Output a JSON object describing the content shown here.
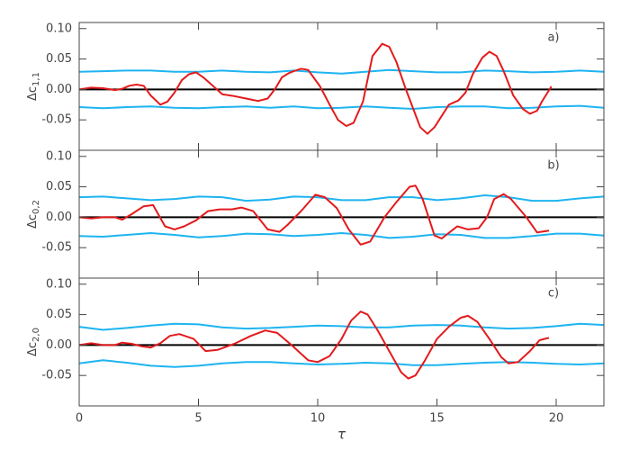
{
  "chart_data": [
    {
      "type": "line",
      "ylabel": "Δc",
      "ylabel_sub": "1,1",
      "annotation": "a)",
      "xlim": [
        0,
        22
      ],
      "xticks": [
        0,
        5,
        10,
        15,
        20
      ],
      "ylim": [
        -0.1,
        0.11
      ],
      "yticks": [
        {
          "value": -0.05,
          "label": "-0.05"
        },
        {
          "value": 0,
          "label": "0.00"
        },
        {
          "value": 0.05,
          "label": "0.05"
        },
        {
          "value": 0.1,
          "label": "0.10"
        }
      ],
      "zero_line": true,
      "series": [
        {
          "color": "#1eb4f0",
          "x": [
            0,
            1,
            2,
            3,
            4,
            5,
            6,
            7,
            8,
            9,
            10,
            11,
            12,
            13,
            14,
            15,
            16,
            17,
            18,
            19,
            20,
            21,
            22
          ],
          "values": [
            0.029,
            0.03,
            0.031,
            0.031,
            0.029,
            0.029,
            0.031,
            0.029,
            0.028,
            0.031,
            0.028,
            0.026,
            0.029,
            0.032,
            0.03,
            0.028,
            0.028,
            0.031,
            0.03,
            0.028,
            0.029,
            0.031,
            0.029
          ]
        },
        {
          "color": "#1eb4f0",
          "x": [
            0,
            1,
            2,
            3,
            4,
            5,
            6,
            7,
            8,
            9,
            10,
            11,
            12,
            13,
            14,
            15,
            16,
            17,
            18,
            19,
            20,
            21,
            22
          ],
          "values": [
            -0.029,
            -0.031,
            -0.029,
            -0.028,
            -0.03,
            -0.031,
            -0.029,
            -0.028,
            -0.03,
            -0.028,
            -0.031,
            -0.03,
            -0.028,
            -0.03,
            -0.032,
            -0.029,
            -0.028,
            -0.028,
            -0.031,
            -0.03,
            -0.028,
            -0.027,
            -0.03
          ]
        },
        {
          "color": "#e31a1c",
          "x": [
            0,
            0.5,
            1,
            1.5,
            1.8,
            2.1,
            2.4,
            2.7,
            3.0,
            3.4,
            3.7,
            4.0,
            4.3,
            4.6,
            4.9,
            5.2,
            5.6,
            6.0,
            6.5,
            7.0,
            7.5,
            7.9,
            8.2,
            8.5,
            8.8,
            9.0,
            9.3,
            9.6,
            10.1,
            10.5,
            10.85,
            11.2,
            11.5,
            11.9,
            12.3,
            12.7,
            13.0,
            13.3,
            13.7,
            14.3,
            14.6,
            14.9,
            15.5,
            15.9,
            16.2,
            16.5,
            16.9,
            17.2,
            17.5,
            17.8,
            18.2,
            18.6,
            18.9,
            19.2,
            19.4,
            19.8
          ],
          "values": [
            0,
            0.003,
            0.002,
            -0.001,
            0.001,
            0.006,
            0.008,
            0.006,
            -0.01,
            -0.025,
            -0.02,
            -0.005,
            0.015,
            0.025,
            0.028,
            0.02,
            0.006,
            -0.008,
            -0.011,
            -0.015,
            -0.019,
            -0.015,
            0,
            0.02,
            0.027,
            0.03,
            0.034,
            0.032,
            0.005,
            -0.025,
            -0.05,
            -0.06,
            -0.055,
            -0.02,
            0.055,
            0.075,
            0.07,
            0.045,
            0,
            -0.062,
            -0.073,
            -0.062,
            -0.025,
            -0.018,
            -0.005,
            0.025,
            0.052,
            0.062,
            0.055,
            0.03,
            -0.01,
            -0.032,
            -0.04,
            -0.035,
            -0.02,
            0.005
          ]
        }
      ]
    },
    {
      "type": "line",
      "ylabel": "Δc",
      "ylabel_sub": "0,2",
      "annotation": "b)",
      "xlim": [
        0,
        22
      ],
      "xticks": [
        0,
        5,
        10,
        15,
        20
      ],
      "ylim": [
        -0.1,
        0.11
      ],
      "yticks": [
        {
          "value": -0.05,
          "label": "-0.05"
        },
        {
          "value": 0,
          "label": "0.00"
        },
        {
          "value": 0.05,
          "label": "0.05"
        },
        {
          "value": 0.1,
          "label": "0.10"
        }
      ],
      "zero_line": true,
      "series": [
        {
          "color": "#1eb4f0",
          "x": [
            0,
            1,
            2,
            3,
            4,
            5,
            6,
            7,
            8,
            9,
            10,
            11,
            12,
            13,
            14,
            15,
            16,
            17,
            18,
            19,
            20,
            21,
            22
          ],
          "values": [
            0.033,
            0.034,
            0.031,
            0.028,
            0.03,
            0.034,
            0.033,
            0.027,
            0.029,
            0.034,
            0.033,
            0.028,
            0.028,
            0.033,
            0.033,
            0.028,
            0.031,
            0.036,
            0.033,
            0.027,
            0.027,
            0.031,
            0.034
          ]
        },
        {
          "color": "#1eb4f0",
          "x": [
            0,
            1,
            2,
            3,
            4,
            5,
            6,
            7,
            8,
            9,
            10,
            11,
            12,
            13,
            14,
            15,
            16,
            17,
            18,
            19,
            20,
            21,
            22
          ],
          "values": [
            -0.031,
            -0.032,
            -0.029,
            -0.026,
            -0.029,
            -0.033,
            -0.031,
            -0.027,
            -0.028,
            -0.031,
            -0.029,
            -0.026,
            -0.029,
            -0.034,
            -0.032,
            -0.028,
            -0.029,
            -0.034,
            -0.034,
            -0.031,
            -0.027,
            -0.027,
            -0.03
          ]
        },
        {
          "color": "#e31a1c",
          "x": [
            0,
            0.5,
            1,
            1.5,
            1.8,
            2.2,
            2.7,
            3.1,
            3.6,
            4.0,
            4.4,
            4.9,
            5.4,
            5.9,
            6.4,
            6.8,
            7.3,
            7.9,
            8.4,
            8.75,
            9.3,
            9.9,
            10.3,
            10.8,
            11.3,
            11.8,
            12.2,
            12.8,
            13.3,
            13.85,
            14.1,
            14.4,
            14.9,
            15.2,
            15.85,
            16.3,
            16.75,
            17.1,
            17.4,
            17.8,
            18.1,
            18.75,
            19.2,
            19.7
          ],
          "values": [
            0,
            -0.002,
            0,
            0,
            -0.004,
            0.005,
            0.018,
            0.02,
            -0.015,
            -0.02,
            -0.015,
            -0.005,
            0.01,
            0.013,
            0.013,
            0.016,
            0.01,
            -0.02,
            -0.024,
            -0.012,
            0.01,
            0.037,
            0.033,
            0.015,
            -0.02,
            -0.045,
            -0.04,
            0,
            0.025,
            0.05,
            0.052,
            0.03,
            -0.03,
            -0.035,
            -0.015,
            -0.02,
            -0.018,
            0,
            0.03,
            0.038,
            0.03,
            0,
            -0.025,
            -0.022
          ]
        }
      ]
    },
    {
      "type": "line",
      "ylabel": "Δc",
      "ylabel_sub": "2,0",
      "annotation": "c)",
      "xlabel": "τ",
      "xlim": [
        0,
        22
      ],
      "xticks": [
        0,
        5,
        10,
        15,
        20
      ],
      "ylim": [
        -0.1,
        0.11
      ],
      "yticks": [
        {
          "value": -0.05,
          "label": "-0.05"
        },
        {
          "value": 0,
          "label": "0.00"
        },
        {
          "value": 0.05,
          "label": "0.05"
        },
        {
          "value": 0.1,
          "label": "0.10"
        }
      ],
      "zero_line": true,
      "series": [
        {
          "color": "#1eb4f0",
          "x": [
            0,
            1,
            2,
            3,
            4,
            5,
            6,
            7,
            8,
            9,
            10,
            11,
            12,
            13,
            14,
            15,
            16,
            17,
            18,
            19,
            20,
            21,
            22
          ],
          "values": [
            0.03,
            0.025,
            0.028,
            0.032,
            0.035,
            0.034,
            0.029,
            0.027,
            0.028,
            0.03,
            0.032,
            0.031,
            0.029,
            0.029,
            0.032,
            0.033,
            0.032,
            0.029,
            0.027,
            0.028,
            0.031,
            0.035,
            0.033
          ]
        },
        {
          "color": "#1eb4f0",
          "x": [
            0,
            1,
            2,
            3,
            4,
            5,
            6,
            7,
            8,
            9,
            10,
            11,
            12,
            13,
            14,
            15,
            16,
            17,
            18,
            19,
            20,
            21,
            22
          ],
          "values": [
            -0.03,
            -0.025,
            -0.029,
            -0.034,
            -0.036,
            -0.034,
            -0.03,
            -0.028,
            -0.028,
            -0.03,
            -0.032,
            -0.031,
            -0.029,
            -0.03,
            -0.033,
            -0.033,
            -0.031,
            -0.029,
            -0.028,
            -0.029,
            -0.031,
            -0.032,
            -0.03
          ]
        },
        {
          "color": "#e31a1c",
          "x": [
            0,
            0.5,
            1,
            1.5,
            1.8,
            2.2,
            2.6,
            3.0,
            3.4,
            3.8,
            4.2,
            4.8,
            5.3,
            5.8,
            6.5,
            7.2,
            7.8,
            8.3,
            8.9,
            9.6,
            10.0,
            10.5,
            11.0,
            11.4,
            11.8,
            12.1,
            12.5,
            13.0,
            13.5,
            13.8,
            14.1,
            14.5,
            15.0,
            15.5,
            16.0,
            16.3,
            16.7,
            17.2,
            17.7,
            18.0,
            18.4,
            18.9,
            19.3,
            19.7
          ],
          "values": [
            0,
            0.003,
            0,
            0,
            0.004,
            0.002,
            -0.002,
            -0.004,
            0.003,
            0.015,
            0.018,
            0.01,
            -0.01,
            -0.008,
            0.002,
            0.015,
            0.024,
            0.02,
            0,
            -0.025,
            -0.028,
            -0.018,
            0.01,
            0.04,
            0.055,
            0.05,
            0.025,
            -0.01,
            -0.045,
            -0.055,
            -0.05,
            -0.025,
            0.01,
            0.03,
            0.045,
            0.048,
            0.038,
            0.01,
            -0.02,
            -0.03,
            -0.028,
            -0.01,
            0.008,
            0.012
          ]
        }
      ]
    }
  ]
}
